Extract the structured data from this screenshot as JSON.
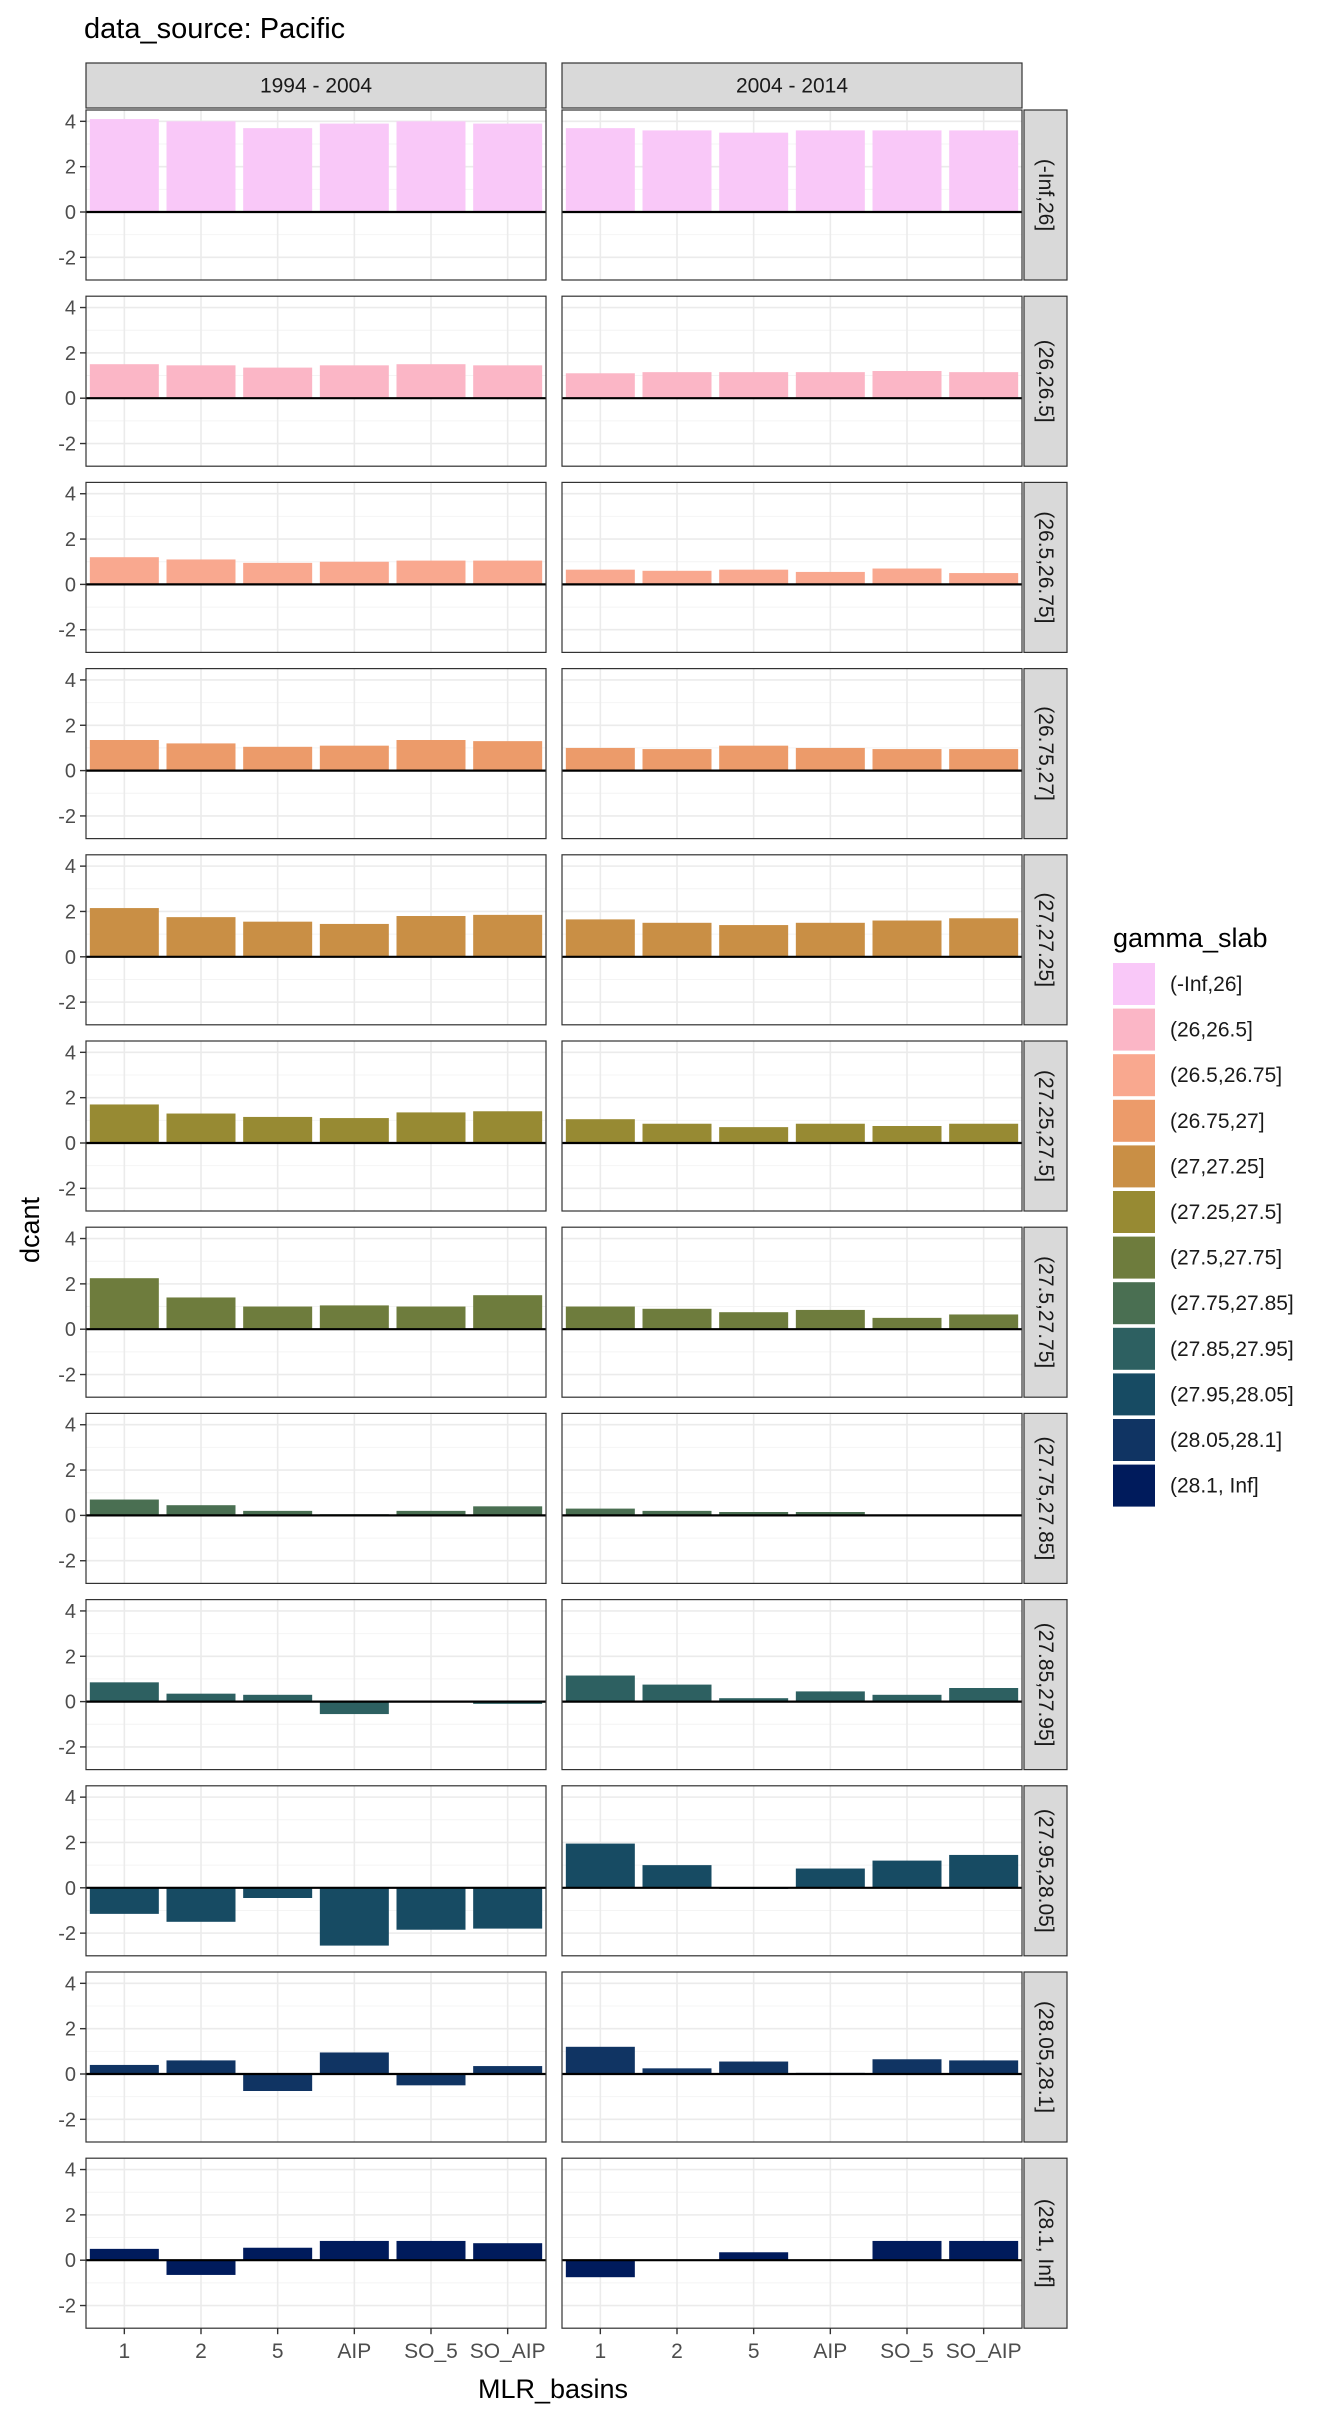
{
  "title": "data_source: Pacific",
  "colors": {
    "panel_border": "#333333",
    "strip_fill": "#d9d9d9",
    "grid_major": "#ebebeb",
    "grid_minor": "#f4f4f4",
    "tick_label": "#4d4d4d",
    "zero_line": "#000000"
  },
  "chart_data": {
    "type": "bar",
    "layout": "facet_grid",
    "xlabel": "MLR_basins",
    "ylabel": "dcant",
    "categories": [
      "1",
      "2",
      "5",
      "AIP",
      "SO_5",
      "SO_AIP"
    ],
    "ylim": [
      -3,
      4.5
    ],
    "yticks": [
      -2,
      0,
      2,
      4
    ],
    "grid": true,
    "columns": [
      "1994 - 2004",
      "2004 - 2014"
    ],
    "legend": {
      "title": "gamma_slab",
      "position": "right"
    },
    "rows": [
      {
        "label": "(-Inf,26]",
        "color": "#f9c8f8",
        "values": [
          [
            4.1,
            4.0,
            3.7,
            3.9,
            4.0,
            3.9
          ],
          [
            3.7,
            3.6,
            3.5,
            3.6,
            3.6,
            3.6
          ]
        ]
      },
      {
        "label": "(26,26.5]",
        "color": "#fbb6c6",
        "values": [
          [
            1.5,
            1.45,
            1.35,
            1.45,
            1.5,
            1.45
          ],
          [
            1.1,
            1.15,
            1.15,
            1.15,
            1.2,
            1.15
          ]
        ]
      },
      {
        "label": "(26.5,26.75]",
        "color": "#f9a88f",
        "values": [
          [
            1.2,
            1.1,
            0.95,
            1.0,
            1.05,
            1.05
          ],
          [
            0.65,
            0.6,
            0.65,
            0.55,
            0.7,
            0.5
          ]
        ]
      },
      {
        "label": "(26.75,27]",
        "color": "#ec9b6a",
        "values": [
          [
            1.35,
            1.2,
            1.05,
            1.1,
            1.35,
            1.3
          ],
          [
            1.0,
            0.95,
            1.1,
            1.0,
            0.95,
            0.95
          ]
        ]
      },
      {
        "label": "(27,27.25]",
        "color": "#c98f45",
        "values": [
          [
            2.15,
            1.75,
            1.55,
            1.45,
            1.8,
            1.85
          ],
          [
            1.65,
            1.5,
            1.4,
            1.5,
            1.6,
            1.7
          ]
        ]
      },
      {
        "label": "(27.25,27.5]",
        "color": "#978a33",
        "values": [
          [
            1.7,
            1.3,
            1.15,
            1.1,
            1.35,
            1.4
          ],
          [
            1.05,
            0.85,
            0.7,
            0.85,
            0.75,
            0.85
          ]
        ]
      },
      {
        "label": "(27.5,27.75]",
        "color": "#6e7c3d",
        "values": [
          [
            2.25,
            1.4,
            1.0,
            1.05,
            1.0,
            1.5
          ],
          [
            1.0,
            0.9,
            0.75,
            0.85,
            0.5,
            0.65
          ]
        ]
      },
      {
        "label": "(27.75,27.85]",
        "color": "#4a6f52",
        "values": [
          [
            0.7,
            0.45,
            0.2,
            0.05,
            0.2,
            0.4
          ],
          [
            0.3,
            0.2,
            0.15,
            0.15,
            0.0,
            0.0
          ]
        ]
      },
      {
        "label": "(27.85,27.95]",
        "color": "#2d6061",
        "values": [
          [
            0.85,
            0.35,
            0.3,
            -0.55,
            0.0,
            -0.1
          ],
          [
            1.15,
            0.75,
            0.15,
            0.45,
            0.3,
            0.6
          ]
        ]
      },
      {
        "label": "(27.95,28.05]",
        "color": "#174b63",
        "values": [
          [
            -1.15,
            -1.5,
            -0.45,
            -2.55,
            -1.85,
            -1.8
          ],
          [
            1.95,
            1.0,
            -0.05,
            0.85,
            1.2,
            1.45
          ]
        ]
      },
      {
        "label": "(28.05,28.1]",
        "color": "#103463",
        "values": [
          [
            0.4,
            0.6,
            -0.75,
            0.95,
            -0.5,
            0.35
          ],
          [
            1.2,
            0.25,
            0.55,
            0.05,
            0.65,
            0.6
          ]
        ]
      },
      {
        "label": "(28.1, Inf]",
        "color": "#001b5c",
        "values": [
          [
            0.5,
            -0.65,
            0.55,
            0.85,
            0.85,
            0.75
          ],
          [
            -0.75,
            0.0,
            0.35,
            0.0,
            0.85,
            0.85
          ]
        ]
      }
    ]
  }
}
